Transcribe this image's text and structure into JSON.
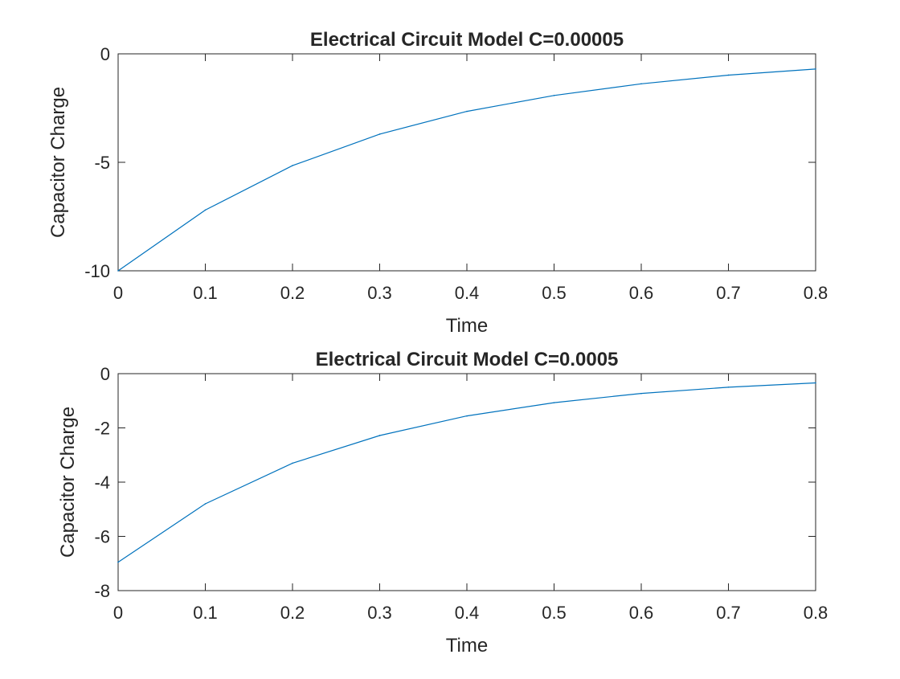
{
  "colors": {
    "series": "#0072BD",
    "axes": "#262626",
    "background": "#ffffff"
  },
  "chart_data": [
    {
      "type": "line",
      "title": "Electrical Circuit Model C=0.00005",
      "xlabel": "Time",
      "ylabel": "Capacitor Charge",
      "xlim": [
        0,
        0.8
      ],
      "ylim": [
        -10,
        0
      ],
      "xticks": [
        0,
        0.1,
        0.2,
        0.3,
        0.4,
        0.5,
        0.6,
        0.7,
        0.8
      ],
      "xtick_labels": [
        "0",
        "0.1",
        "0.2",
        "0.3",
        "0.4",
        "0.5",
        "0.6",
        "0.7",
        "0.8"
      ],
      "yticks": [
        -10,
        -5,
        0
      ],
      "ytick_labels": [
        "-10",
        "-5",
        "0"
      ],
      "grid": false,
      "series": [
        {
          "x": [
            0,
            0.1,
            0.2,
            0.3,
            0.4,
            0.5,
            0.6,
            0.7,
            0.8
          ],
          "values": [
            -10,
            -7.2,
            -5.15,
            -3.7,
            -2.65,
            -1.92,
            -1.38,
            -0.98,
            -0.7
          ]
        }
      ]
    },
    {
      "type": "line",
      "title": "Electrical Circuit Model C=0.0005",
      "xlabel": "Time",
      "ylabel": "Capacitor Charge",
      "xlim": [
        0,
        0.8
      ],
      "ylim": [
        -8,
        0
      ],
      "xticks": [
        0,
        0.1,
        0.2,
        0.3,
        0.4,
        0.5,
        0.6,
        0.7,
        0.8
      ],
      "xtick_labels": [
        "0",
        "0.1",
        "0.2",
        "0.3",
        "0.4",
        "0.5",
        "0.6",
        "0.7",
        "0.8"
      ],
      "yticks": [
        -8,
        -6,
        -4,
        -2,
        0
      ],
      "ytick_labels": [
        "-8",
        "-6",
        "-4",
        "-2",
        "0"
      ],
      "grid": false,
      "series": [
        {
          "x": [
            0,
            0.1,
            0.2,
            0.3,
            0.4,
            0.5,
            0.6,
            0.7,
            0.8
          ],
          "values": [
            -6.95,
            -4.8,
            -3.3,
            -2.28,
            -1.56,
            -1.07,
            -0.73,
            -0.5,
            -0.34
          ]
        }
      ]
    }
  ]
}
